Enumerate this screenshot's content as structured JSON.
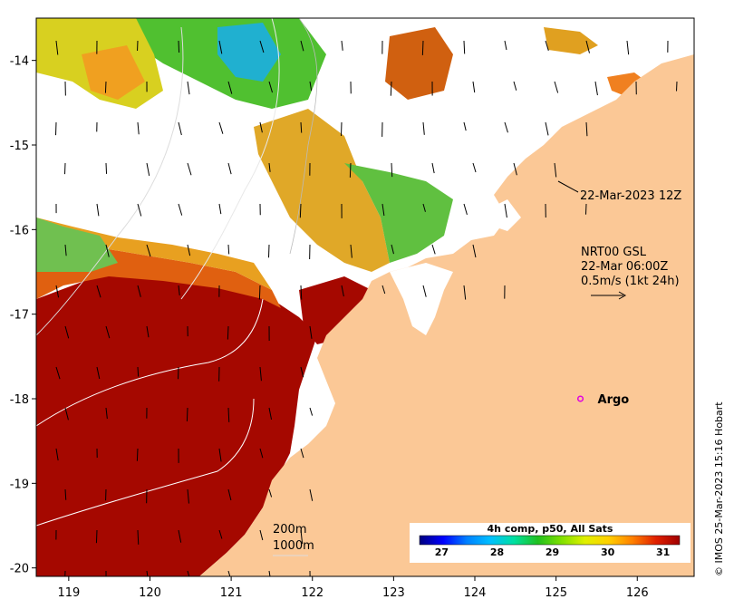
{
  "map": {
    "lon_ticks": [
      "119",
      "120",
      "121",
      "122",
      "123",
      "124",
      "125",
      "126"
    ],
    "lat_ticks": [
      "-14",
      "-15",
      "-16",
      "-17",
      "-18",
      "-19",
      "-20"
    ],
    "lon_range": [
      118.6,
      126.7
    ],
    "lat_range": [
      -20.1,
      -13.5
    ],
    "colors": {
      "land": "#fbc896",
      "cloud": "#ffffff",
      "sst_hot": "#a50800",
      "contour": "#dcdcdc"
    }
  },
  "annotations": {
    "timestamp": "22-Mar-2023 12Z",
    "current_line1": "NRT00 GSL",
    "current_line2": "22-Mar 06:00Z",
    "current_line3": "0.5m/s (1kt 24h)"
  },
  "argo": {
    "label": "Argo",
    "lon": 125.3,
    "lat": -18.0,
    "color": "#e000e0"
  },
  "contours": {
    "label_200": "200m",
    "label_1000": "1000m"
  },
  "colorbar": {
    "title": "4h comp, p50, All Sats",
    "ticks": [
      "27",
      "28",
      "29",
      "30",
      "31"
    ],
    "tick_values": [
      27,
      28,
      29,
      30,
      31
    ],
    "range": [
      26.6,
      31.3
    ],
    "stops": [
      "#00007f",
      "#0000ff",
      "#0080ff",
      "#00c0ff",
      "#00e0a0",
      "#20c020",
      "#80e000",
      "#e0f000",
      "#ffd000",
      "#ff8000",
      "#e02000",
      "#a00000"
    ]
  },
  "credit": "© IMOS 25-Mar-2023 15:16 Hobart"
}
